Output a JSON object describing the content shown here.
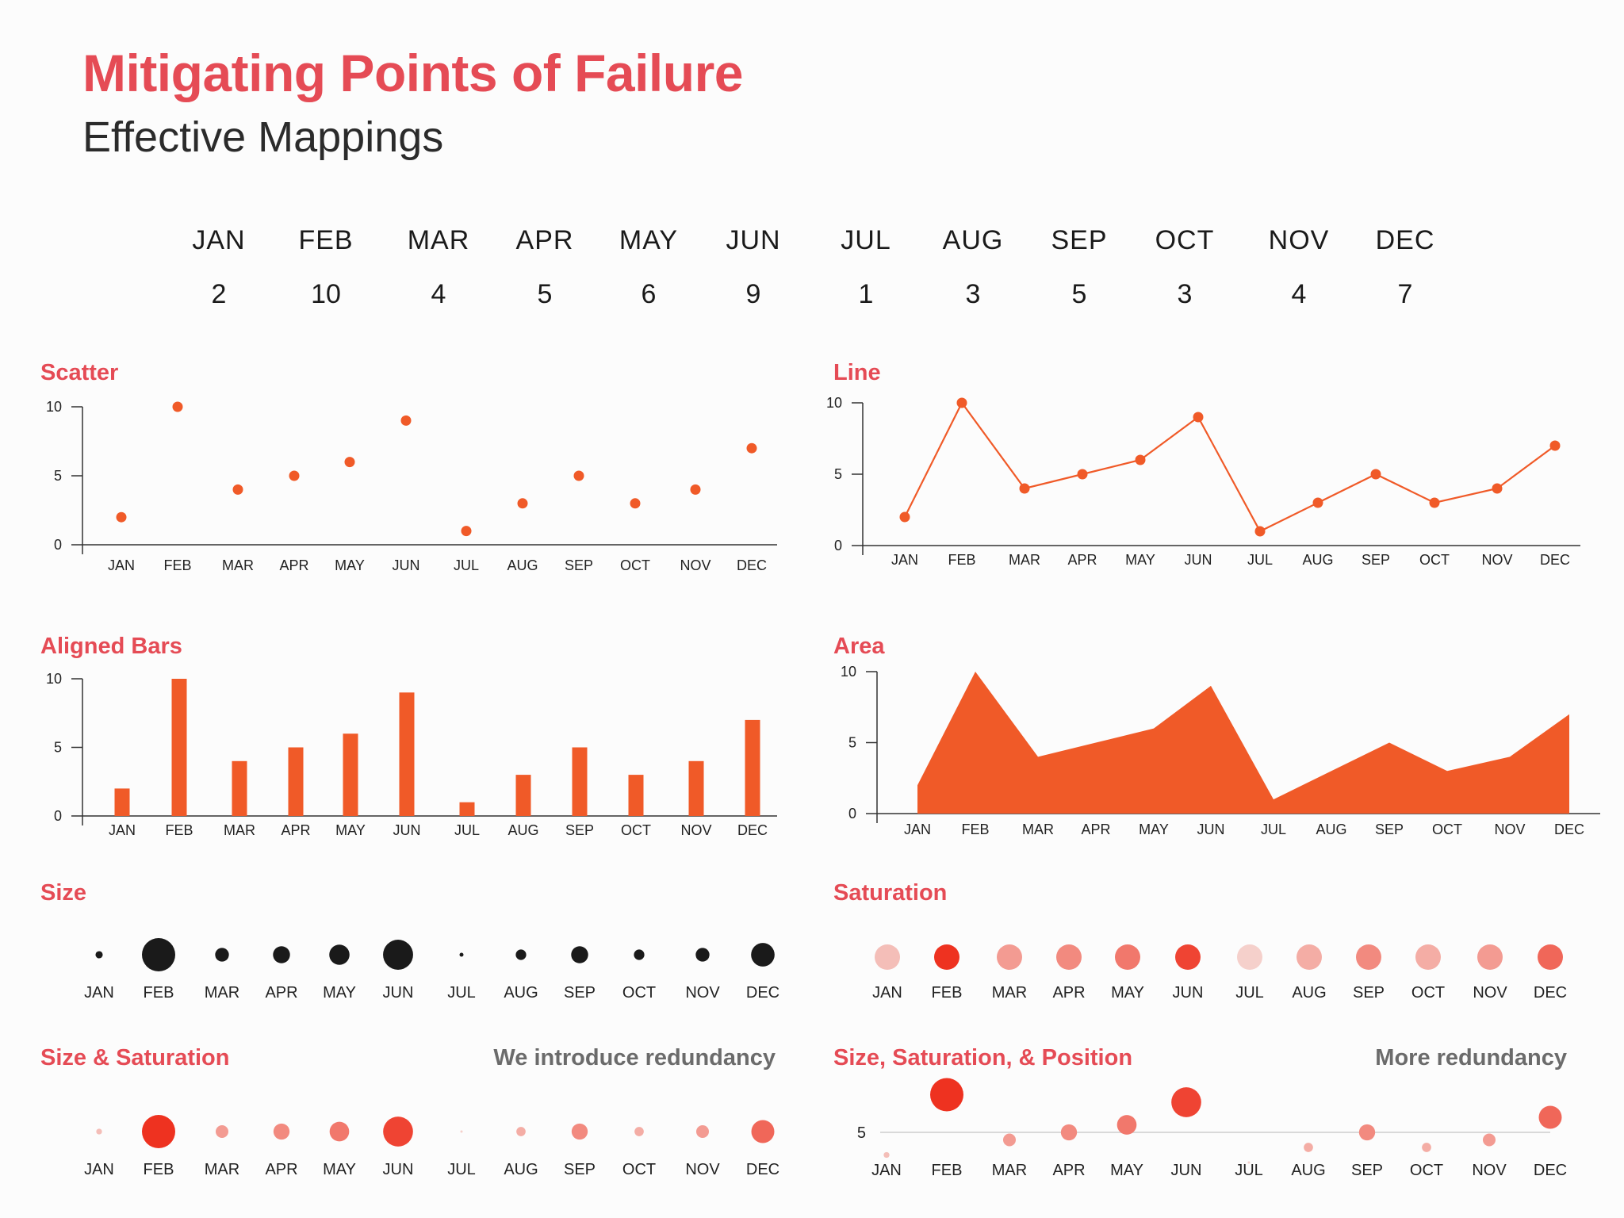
{
  "title": "Mitigating Points of Failure",
  "subtitle": "Effective Mappings",
  "colors": {
    "accent": "#e54b55",
    "mark": "#f05a28",
    "dark": "#1a1a1a",
    "note": "#6b6b6b"
  },
  "chart_data": [
    {
      "id": "table",
      "type": "table",
      "title": "",
      "categories": [
        "JAN",
        "FEB",
        "MAR",
        "APR",
        "MAY",
        "JUN",
        "JUL",
        "AUG",
        "SEP",
        "OCT",
        "NOV",
        "DEC"
      ],
      "values": [
        2,
        10,
        4,
        5,
        6,
        9,
        1,
        3,
        5,
        3,
        4,
        7
      ]
    },
    {
      "id": "scatter",
      "type": "scatter",
      "title": "Scatter",
      "categories": [
        "JAN",
        "FEB",
        "MAR",
        "APR",
        "MAY",
        "JUN",
        "JUL",
        "AUG",
        "SEP",
        "OCT",
        "NOV",
        "DEC"
      ],
      "values": [
        2,
        10,
        4,
        5,
        6,
        9,
        1,
        3,
        5,
        3,
        4,
        7
      ],
      "ylim": [
        0,
        10
      ],
      "yticks": [
        0,
        5,
        10
      ]
    },
    {
      "id": "line",
      "type": "line",
      "title": "Line",
      "categories": [
        "JAN",
        "FEB",
        "MAR",
        "APR",
        "MAY",
        "JUN",
        "JUL",
        "AUG",
        "SEP",
        "OCT",
        "NOV",
        "DEC"
      ],
      "values": [
        2,
        10,
        4,
        5,
        6,
        9,
        1,
        3,
        5,
        3,
        4,
        7
      ],
      "ylim": [
        0,
        10
      ],
      "yticks": [
        0,
        5,
        10
      ]
    },
    {
      "id": "bars",
      "type": "bar",
      "title": "Aligned Bars",
      "categories": [
        "JAN",
        "FEB",
        "MAR",
        "APR",
        "MAY",
        "JUN",
        "JUL",
        "AUG",
        "SEP",
        "OCT",
        "NOV",
        "DEC"
      ],
      "values": [
        2,
        10,
        4,
        5,
        6,
        9,
        1,
        3,
        5,
        3,
        4,
        7
      ],
      "ylim": [
        0,
        10
      ],
      "yticks": [
        0,
        5,
        10
      ]
    },
    {
      "id": "area",
      "type": "area",
      "title": "Area",
      "categories": [
        "JAN",
        "FEB",
        "MAR",
        "APR",
        "MAY",
        "JUN",
        "JUL",
        "AUG",
        "SEP",
        "OCT",
        "NOV",
        "DEC"
      ],
      "values": [
        2,
        10,
        4,
        5,
        6,
        9,
        1,
        3,
        5,
        3,
        4,
        7
      ],
      "ylim": [
        0,
        10
      ],
      "yticks": [
        0,
        5,
        10
      ]
    },
    {
      "id": "size",
      "type": "scatter",
      "encoding": "size",
      "title": "Size",
      "categories": [
        "JAN",
        "FEB",
        "MAR",
        "APR",
        "MAY",
        "JUN",
        "JUL",
        "AUG",
        "SEP",
        "OCT",
        "NOV",
        "DEC"
      ],
      "values": [
        2,
        10,
        4,
        5,
        6,
        9,
        1,
        3,
        5,
        3,
        4,
        7
      ]
    },
    {
      "id": "saturation",
      "type": "scatter",
      "encoding": "saturation",
      "title": "Saturation",
      "categories": [
        "JAN",
        "FEB",
        "MAR",
        "APR",
        "MAY",
        "JUN",
        "JUL",
        "AUG",
        "SEP",
        "OCT",
        "NOV",
        "DEC"
      ],
      "values": [
        2,
        10,
        4,
        5,
        6,
        9,
        1,
        3,
        5,
        3,
        4,
        7
      ]
    },
    {
      "id": "size_sat",
      "type": "scatter",
      "encoding": "size+saturation",
      "title": "Size & Saturation",
      "note": "We introduce redundancy",
      "categories": [
        "JAN",
        "FEB",
        "MAR",
        "APR",
        "MAY",
        "JUN",
        "JUL",
        "AUG",
        "SEP",
        "OCT",
        "NOV",
        "DEC"
      ],
      "values": [
        2,
        10,
        4,
        5,
        6,
        9,
        1,
        3,
        5,
        3,
        4,
        7
      ]
    },
    {
      "id": "size_sat_pos",
      "type": "scatter",
      "encoding": "size+saturation+position",
      "title": "Size, Saturation, & Position",
      "note": "More redundancy",
      "categories": [
        "JAN",
        "FEB",
        "MAR",
        "APR",
        "MAY",
        "JUN",
        "JUL",
        "AUG",
        "SEP",
        "OCT",
        "NOV",
        "DEC"
      ],
      "values": [
        2,
        10,
        4,
        5,
        6,
        9,
        1,
        3,
        5,
        3,
        4,
        7
      ],
      "reference_line": 5,
      "reference_label": "5"
    }
  ]
}
